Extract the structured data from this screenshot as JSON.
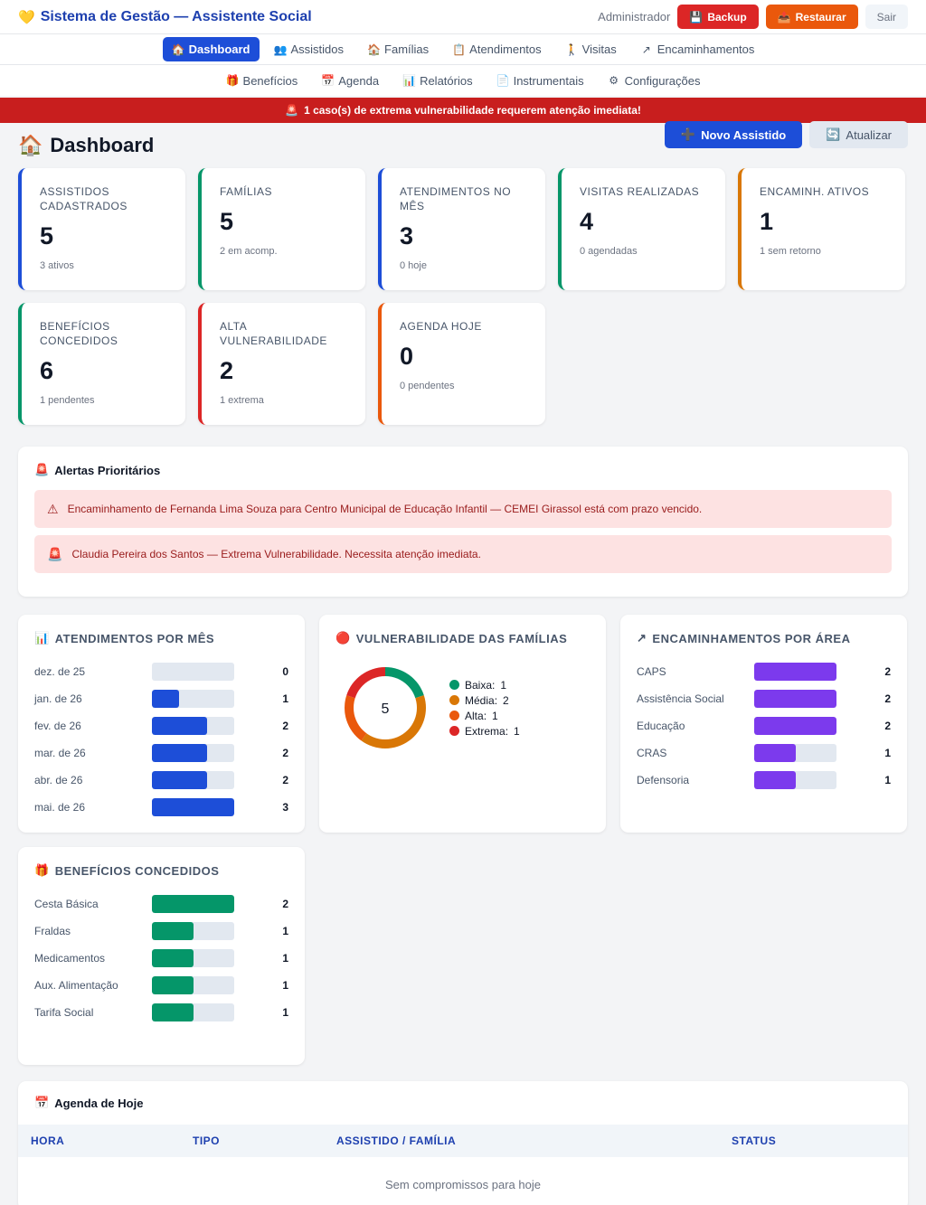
{
  "app": {
    "title": "Sistema de Gestão — Assistente Social",
    "user": "Administrador",
    "backup_label": "Backup",
    "restore_label": "Restaurar",
    "logout_label": "Sair"
  },
  "nav": {
    "row1": [
      {
        "label": "Dashboard",
        "icon": "home-icon",
        "glyph": "🏠"
      },
      {
        "label": "Assistidos",
        "icon": "users-icon",
        "glyph": "👥"
      },
      {
        "label": "Famílias",
        "icon": "house-icon",
        "glyph": "🏠"
      },
      {
        "label": "Atendimentos",
        "icon": "clipboard-icon",
        "glyph": "📋"
      },
      {
        "label": "Visitas",
        "icon": "walking-icon",
        "glyph": "🚶"
      },
      {
        "label": "Encaminhamentos",
        "icon": "arrow-icon",
        "glyph": "↗"
      }
    ],
    "row2": [
      {
        "label": "Benefícios",
        "icon": "gift-icon",
        "glyph": "🎁"
      },
      {
        "label": "Agenda",
        "icon": "calendar-icon",
        "glyph": "📅"
      },
      {
        "label": "Relatórios",
        "icon": "chart-icon",
        "glyph": "📊"
      },
      {
        "label": "Instrumentais",
        "icon": "document-icon",
        "glyph": "📄"
      },
      {
        "label": "Configurações",
        "icon": "gear-icon",
        "glyph": "⚙"
      }
    ],
    "active": "Dashboard"
  },
  "banner": {
    "text": "1 caso(s) de extrema vulnerabilidade requerem atenção imediata!"
  },
  "page": {
    "title": "Dashboard",
    "new_button": "Novo Assistido",
    "refresh_button": "Atualizar"
  },
  "stats": [
    {
      "label": "Assistidos Cadastrados",
      "value": "5",
      "sub": "3 ativos",
      "color": "#1d4ed8"
    },
    {
      "label": "Famílias",
      "value": "5",
      "sub": "2 em acomp.",
      "color": "#059669"
    },
    {
      "label": "Atendimentos no Mês",
      "value": "3",
      "sub": "0 hoje",
      "color": "#1d4ed8"
    },
    {
      "label": "Visitas Realizadas",
      "value": "4",
      "sub": "0 agendadas",
      "color": "#059669"
    },
    {
      "label": "Encaminh. Ativos",
      "value": "1",
      "sub": "1 sem retorno",
      "color": "#d97706"
    },
    {
      "label": "Benefícios Concedidos",
      "value": "6",
      "sub": "1 pendentes",
      "color": "#059669"
    },
    {
      "label": "Alta Vulnerabilidade",
      "value": "2",
      "sub": "1 extrema",
      "color": "#dc2626"
    },
    {
      "label": "Agenda Hoje",
      "value": "0",
      "sub": "0 pendentes",
      "color": "#ea580c"
    }
  ],
  "alerts": {
    "title": "Alertas Prioritários",
    "items": [
      {
        "icon": "warning-icon",
        "glyph": "⚠",
        "text": "Encaminhamento de Fernanda Lima Souza para Centro Municipal de Educação Infantil — CEMEI Girassol está com prazo vencido."
      },
      {
        "icon": "siren-icon",
        "glyph": "🚨",
        "text": "Claudia Pereira dos Santos — Extrema Vulnerabilidade. Necessita atenção imediata."
      }
    ]
  },
  "chart_data": [
    {
      "type": "bar",
      "title": "Atendimentos por Mês",
      "categories": [
        "dez. de 25",
        "jan. de 26",
        "fev. de 26",
        "mar. de 26",
        "abr. de 26",
        "mai. de 26"
      ],
      "values": [
        0,
        1,
        2,
        2,
        2,
        3
      ],
      "color": "#1d4ed8"
    },
    {
      "type": "pie",
      "title": "Vulnerabilidade das Famílias",
      "center_label": "5",
      "categories": [
        "Baixa",
        "Média",
        "Alta",
        "Extrema"
      ],
      "values": [
        1,
        2,
        1,
        1
      ],
      "colors": [
        "#059669",
        "#d97706",
        "#ea580c",
        "#dc2626"
      ]
    },
    {
      "type": "bar",
      "title": "Encaminhamentos por Área",
      "categories": [
        "CAPS",
        "Assistência Social",
        "Educação",
        "CRAS",
        "Defensoria"
      ],
      "values": [
        2,
        2,
        2,
        1,
        1
      ],
      "color": "#7c3aed"
    },
    {
      "type": "bar",
      "title": "Benefícios Concedidos",
      "categories": [
        "Cesta Básica",
        "Fraldas",
        "Medicamentos",
        "Aux. Alimentação",
        "Tarifa Social"
      ],
      "values": [
        2,
        1,
        1,
        1,
        1
      ],
      "color": "#059669"
    }
  ],
  "agenda": {
    "title": "Agenda de Hoje",
    "columns": [
      "Hora",
      "Tipo",
      "Assistido / Família",
      "Status"
    ],
    "empty": "Sem compromissos para hoje"
  }
}
